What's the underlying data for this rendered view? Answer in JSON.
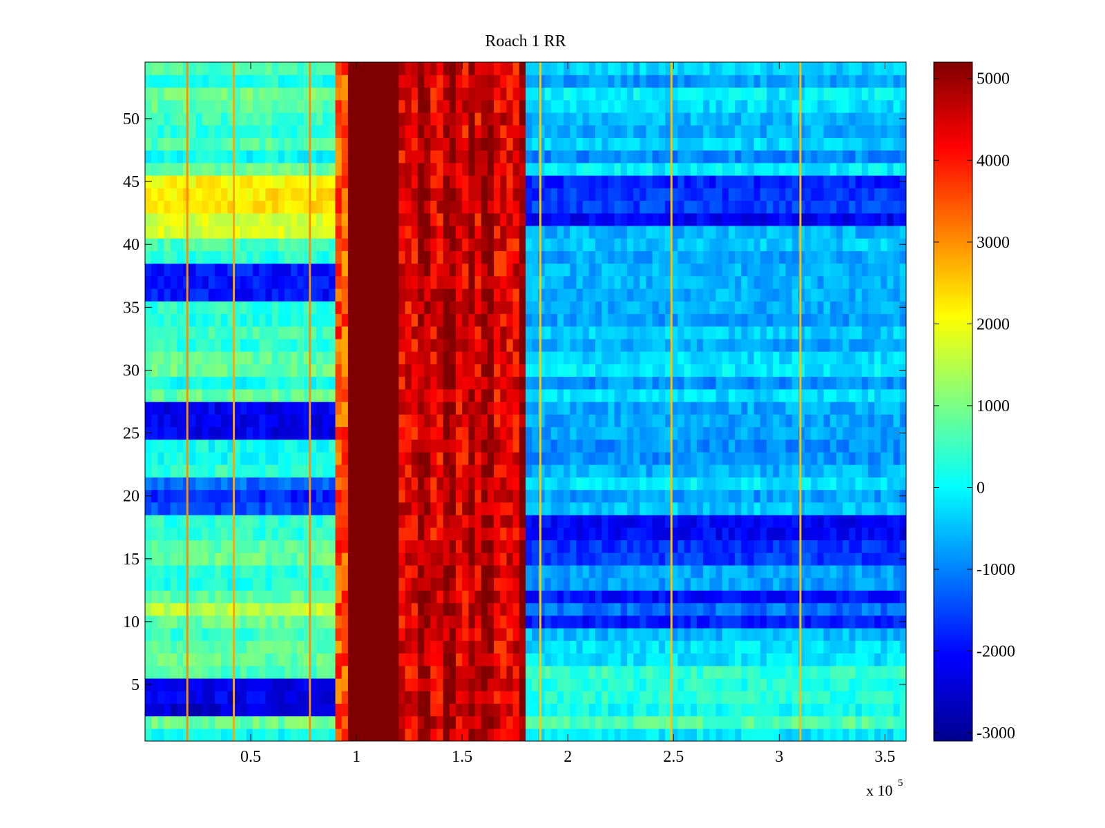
{
  "chart_data": {
    "type": "heatmap",
    "title": "Roach 1 RR",
    "xlabel": "",
    "ylabel": "",
    "x_multiplier_label": "x 10",
    "x_multiplier_exponent": "5",
    "xlim": [
      0,
      3.6
    ],
    "ylim": [
      0.5,
      54.5
    ],
    "n_rows": 54,
    "x_ticks": [
      {
        "value": 0.5,
        "label": "0.5"
      },
      {
        "value": 1,
        "label": "1"
      },
      {
        "value": 1.5,
        "label": "1.5"
      },
      {
        "value": 2,
        "label": "2"
      },
      {
        "value": 2.5,
        "label": "2.5"
      },
      {
        "value": 3,
        "label": "3"
      },
      {
        "value": 3.5,
        "label": "3.5"
      }
    ],
    "y_ticks": [
      {
        "value": 5,
        "label": "5"
      },
      {
        "value": 10,
        "label": "10"
      },
      {
        "value": 15,
        "label": "15"
      },
      {
        "value": 20,
        "label": "20"
      },
      {
        "value": 25,
        "label": "25"
      },
      {
        "value": 30,
        "label": "30"
      },
      {
        "value": 35,
        "label": "35"
      },
      {
        "value": 40,
        "label": "40"
      },
      {
        "value": 45,
        "label": "45"
      },
      {
        "value": 50,
        "label": "50"
      }
    ],
    "colorbar": {
      "colormap": "jet",
      "range": [
        -3100,
        5200
      ],
      "ticks": [
        {
          "value": 5000,
          "label": "5000"
        },
        {
          "value": 4000,
          "label": "4000"
        },
        {
          "value": 3000,
          "label": "3000"
        },
        {
          "value": 2000,
          "label": "2000"
        },
        {
          "value": 1000,
          "label": "1000"
        },
        {
          "value": 0,
          "label": "0"
        },
        {
          "value": -1000,
          "label": "-1000"
        },
        {
          "value": -2000,
          "label": "-2000"
        },
        {
          "value": -3000,
          "label": "-3000"
        }
      ]
    },
    "column_profile": [
      {
        "x0": 0.0,
        "x1": 0.9,
        "value": 500
      },
      {
        "x0": 0.9,
        "x1": 0.95,
        "value": 3500
      },
      {
        "x0": 0.95,
        "x1": 1.2,
        "value": 5200
      },
      {
        "x0": 1.2,
        "x1": 1.8,
        "value": 4300
      },
      {
        "x0": 1.8,
        "x1": 3.6,
        "value": -500
      }
    ],
    "bright_column_bands": [
      {
        "x0": 0.95,
        "x1": 1.2,
        "value": 5200
      },
      {
        "x0": 1.3,
        "x1": 1.34,
        "value": 5000
      },
      {
        "x0": 1.42,
        "x1": 1.47,
        "value": 5000
      },
      {
        "x0": 1.53,
        "x1": 1.56,
        "value": 5000
      },
      {
        "x0": 1.6,
        "x1": 1.66,
        "value": 5000
      },
      {
        "x0": 1.78,
        "x1": 1.8,
        "value": 5200
      }
    ],
    "vertical_lines": [
      {
        "x": 0.2,
        "value": 3000
      },
      {
        "x": 0.42,
        "value": 2800
      },
      {
        "x": 0.78,
        "value": 3000
      },
      {
        "x": 1.87,
        "value": 2500
      },
      {
        "x": 2.49,
        "value": 2600
      },
      {
        "x": 3.1,
        "value": 2600
      }
    ],
    "row_bands_low_x": [
      {
        "rows": [
          41,
          45
        ],
        "value": 1900
      },
      {
        "rows": [
          36,
          38
        ],
        "value": -1800
      },
      {
        "rows": [
          25,
          27
        ],
        "value": -2000
      },
      {
        "rows": [
          19,
          21
        ],
        "value": -1500
      },
      {
        "rows": [
          10,
          12
        ],
        "value": 1200
      },
      {
        "rows": [
          3,
          5
        ],
        "value": -2200
      }
    ],
    "row_bands_high_x": [
      {
        "rows": [
          42,
          45
        ],
        "value": -2000
      },
      {
        "rows": [
          15,
          18
        ],
        "value": -1900
      },
      {
        "rows": [
          10,
          12
        ],
        "value": -1500
      },
      {
        "rows": [
          1,
          6
        ],
        "value": 300
      }
    ]
  }
}
